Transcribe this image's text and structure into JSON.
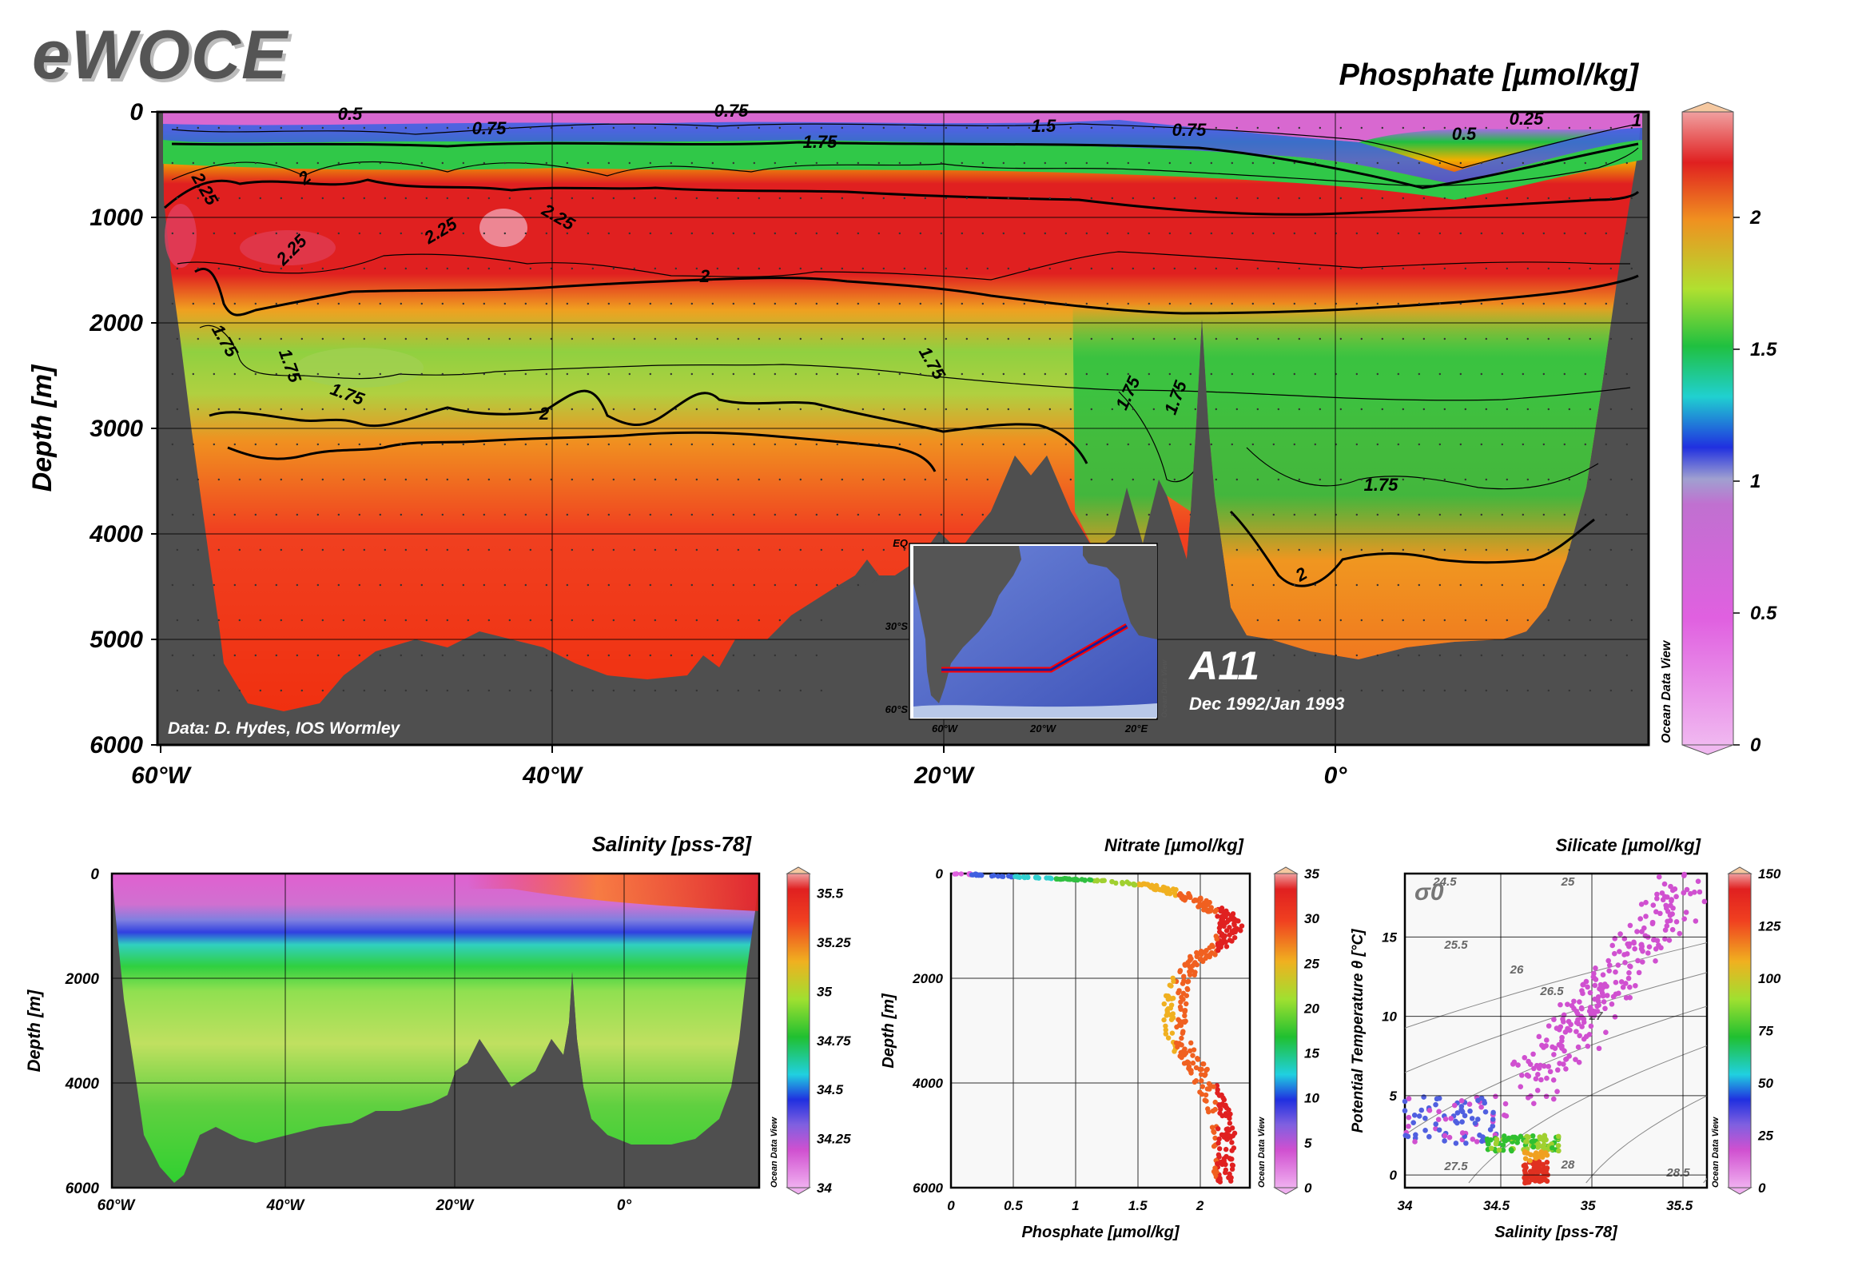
{
  "logo": "eWOCE",
  "chart_data": [
    {
      "type": "heatmap",
      "title": "Phosphate [µmol/kg]",
      "ylabel": "Depth [m]",
      "y_ticks": [
        "0",
        "1000",
        "2000",
        "3000",
        "4000",
        "5000",
        "6000"
      ],
      "x_ticks": [
        "60°W",
        "40°W",
        "20°W",
        "0°"
      ],
      "ylim": [
        6000,
        0
      ],
      "colorbar": {
        "ticks": [
          "0",
          "0.5",
          "1",
          "1.5",
          "2"
        ],
        "range": [
          0,
          2.4
        ],
        "credit": "Ocean Data View"
      },
      "contour_labels": [
        "0.5",
        "0.75",
        "0.75",
        "1.5",
        "0.75",
        "0.5",
        "0.25",
        "1",
        "1.75",
        "2",
        "2.25",
        "2.25",
        "2.25",
        "2.25",
        "2",
        "1.75",
        "1.75",
        "1.75",
        "1.75",
        "2",
        "1.75",
        "1.75",
        "1.75",
        "2"
      ],
      "annotation": "Data: D. Hydes, IOS Wormley",
      "section": {
        "name": "A11",
        "dates": "Dec 1992/Jan 1993"
      },
      "inset_map": {
        "lat_labels": [
          "EQ",
          "30°S",
          "60°S"
        ],
        "lon_labels": [
          "60°W",
          "20°W",
          "20°E"
        ],
        "credit": "Ocean Data View"
      }
    },
    {
      "type": "heatmap",
      "title": "Salinity [pss-78]",
      "ylabel": "Depth [m]",
      "y_ticks": [
        "0",
        "2000",
        "4000",
        "6000"
      ],
      "x_ticks": [
        "60°W",
        "40°W",
        "20°W",
        "0°"
      ],
      "ylim": [
        6000,
        0
      ],
      "colorbar": {
        "ticks": [
          "34",
          "34.25",
          "34.5",
          "34.75",
          "35",
          "35.25",
          "35.5"
        ],
        "range": [
          34,
          35.6
        ],
        "credit": "Ocean Data View"
      }
    },
    {
      "type": "scatter",
      "title": "Nitrate [µmol/kg]",
      "xlabel": "Phosphate [µmol/kg]",
      "ylabel": "Depth [m]",
      "xlim": [
        0,
        2.4
      ],
      "ylim": [
        6000,
        0
      ],
      "x_ticks": [
        "0",
        "0.5",
        "1",
        "1.5",
        "2"
      ],
      "y_ticks": [
        "0",
        "2000",
        "4000",
        "6000"
      ],
      "colorbar": {
        "ticks": [
          "0",
          "5",
          "10",
          "15",
          "20",
          "25",
          "30",
          "35"
        ],
        "range": [
          0,
          35
        ],
        "credit": "Ocean Data View"
      },
      "profile": [
        {
          "depth": 0,
          "x": 0.05
        },
        {
          "depth": 50,
          "x": 0.4
        },
        {
          "depth": 100,
          "x": 0.9
        },
        {
          "depth": 150,
          "x": 1.3
        },
        {
          "depth": 250,
          "x": 1.65
        },
        {
          "depth": 400,
          "x": 1.85
        },
        {
          "depth": 600,
          "x": 2.05
        },
        {
          "depth": 800,
          "x": 2.2
        },
        {
          "depth": 1000,
          "x": 2.25
        },
        {
          "depth": 1300,
          "x": 2.2
        },
        {
          "depth": 1600,
          "x": 2.0
        },
        {
          "depth": 2000,
          "x": 1.85
        },
        {
          "depth": 2500,
          "x": 1.8
        },
        {
          "depth": 3000,
          "x": 1.8
        },
        {
          "depth": 3500,
          "x": 1.9
        },
        {
          "depth": 4000,
          "x": 2.05
        },
        {
          "depth": 4500,
          "x": 2.15
        },
        {
          "depth": 5000,
          "x": 2.2
        },
        {
          "depth": 5500,
          "x": 2.2
        },
        {
          "depth": 5900,
          "x": 2.2
        }
      ]
    },
    {
      "type": "scatter",
      "title": "Silicate [µmol/kg]",
      "xlabel": "Salinity [pss-78]",
      "ylabel": "Potential Temperature θ [°C]",
      "xlim": [
        34,
        35.65
      ],
      "ylim": [
        -0.8,
        19
      ],
      "x_ticks": [
        "34",
        "34.5",
        "35",
        "35.5"
      ],
      "y_ticks": [
        "0",
        "5",
        "10",
        "15"
      ],
      "sigma_label": "σ0",
      "isopycnal_labels": [
        "24.5",
        "25",
        "25.5",
        "26",
        "26.5",
        "27",
        "27.5",
        "28",
        "28.5"
      ],
      "colorbar": {
        "ticks": [
          "0",
          "25",
          "50",
          "75",
          "100",
          "125",
          "150"
        ],
        "range": [
          0,
          150
        ],
        "credit": "Ocean Data View"
      },
      "clusters": [
        {
          "s": [
            34.65,
            35.6
          ],
          "t": [
            5,
            19
          ],
          "si": [
            2,
            8
          ]
        },
        {
          "s": [
            34.0,
            34.5
          ],
          "t": [
            2,
            5
          ],
          "si": [
            5,
            25
          ]
        },
        {
          "s": [
            34.45,
            34.85
          ],
          "t": [
            1.5,
            2.5
          ],
          "si": [
            50,
            80
          ]
        },
        {
          "s": [
            34.65,
            34.78
          ],
          "t": [
            -0.5,
            1.5
          ],
          "si": [
            90,
            140
          ]
        }
      ]
    }
  ]
}
